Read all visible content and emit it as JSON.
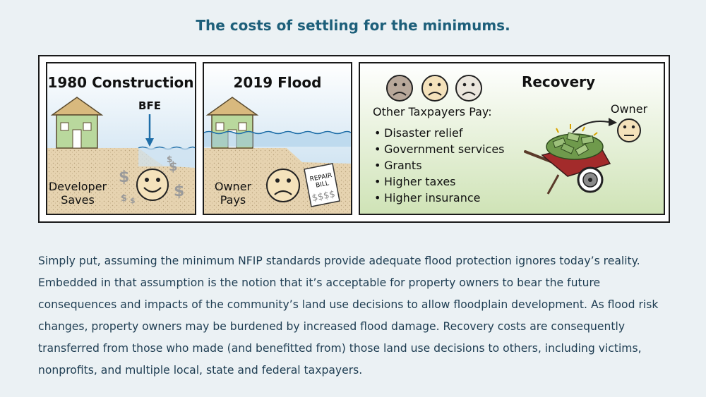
{
  "heading": "The costs of settling for the minimums.",
  "panels": {
    "construction": {
      "title": "1980 Construction",
      "marker": "BFE",
      "caption_line1": "Developer",
      "caption_line2": "Saves"
    },
    "flood": {
      "title": "2019 Flood",
      "caption_line1": "Owner",
      "caption_line2": "Pays",
      "bill_line1": "REPAIR",
      "bill_line2": "BILL",
      "bill_amount": "$$$$"
    },
    "recovery": {
      "title": "Recovery",
      "subtitle": "Other Taxpayers Pay:",
      "items": [
        "Disaster relief",
        "Government services",
        "Grants",
        "Higher taxes",
        "Higher insurance"
      ],
      "owner_label": "Owner"
    }
  },
  "paragraph": "Simply put, assuming the minimum NFIP standards provide adequate flood protection ignores today’s reality. Embedded in that assumption is the notion that it’s acceptable for property owners to bear the future consequences and impacts of the community’s land use decisions to allow floodplain development. As flood risk changes, property owners may be burdened by increased flood damage. Recovery costs are consequently transferred from those who made (and benefitted from) those land use decisions to others, including victims, nonprofits, and multiple local, state and federal taxpayers.",
  "colors": {
    "heading": "#1d5f7a",
    "text": "#1e3d52",
    "background": "#ebf1f4",
    "sky": "#cfe3f1",
    "ground": "#e5d2ae",
    "water": "#1f6ea8",
    "house": "#b9d89d",
    "recovery_bg": "#d9e9c6"
  }
}
